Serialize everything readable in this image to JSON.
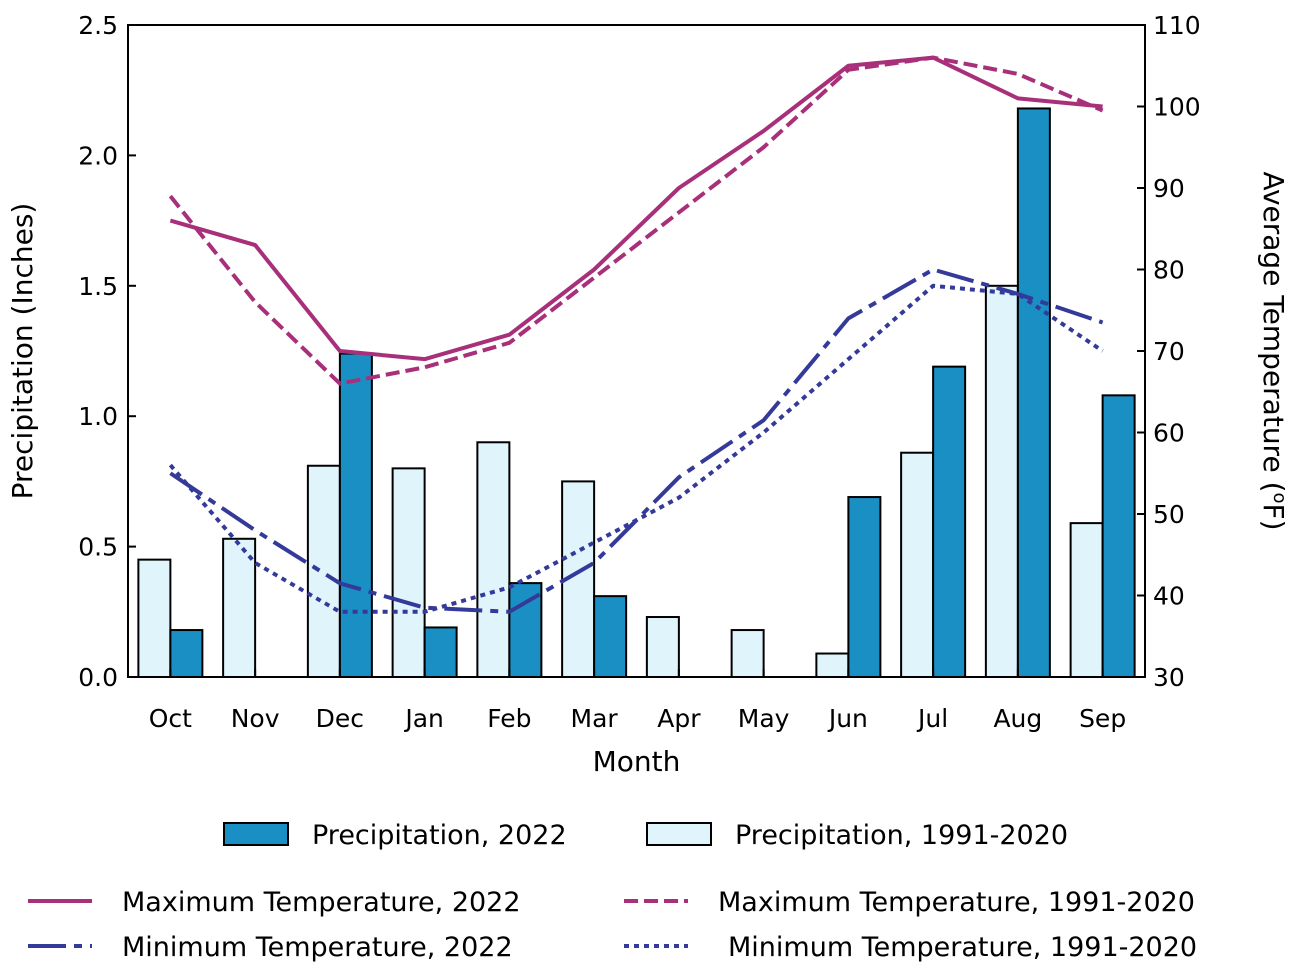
{
  "chart_data": {
    "type": "bar",
    "categories": [
      "Oct",
      "Nov",
      "Dec",
      "Jan",
      "Feb",
      "Mar",
      "Apr",
      "May",
      "Jun",
      "Jul",
      "Aug",
      "Sep"
    ],
    "xlabel": "Month",
    "ylabel_left": "Precipitation (Inches)",
    "ylabel_right_prefix": "Average Temperature (",
    "ylabel_right_sup": "o",
    "ylabel_right_suffix": "F)",
    "ylim_left": [
      0,
      2.5
    ],
    "yticks_left": [
      "0.0",
      "0.5",
      "1.0",
      "1.5",
      "2.0",
      "2.5"
    ],
    "ylim_right": [
      30,
      110
    ],
    "yticks_right": [
      "30",
      "40",
      "50",
      "60",
      "70",
      "80",
      "90",
      "100",
      "110"
    ],
    "grid": false,
    "bar_series": [
      {
        "name": "Precipitation, 1991-2020",
        "color": "#e0f4fb",
        "values": [
          0.45,
          0.53,
          0.81,
          0.8,
          0.9,
          0.75,
          0.23,
          0.18,
          0.09,
          0.86,
          1.5,
          0.59
        ]
      },
      {
        "name": "Precipitation, 2022",
        "color": "#1a8fc4",
        "values": [
          0.18,
          0.0,
          1.24,
          0.19,
          0.36,
          0.31,
          0.0,
          0.0,
          0.69,
          1.19,
          2.18,
          1.08
        ]
      }
    ],
    "line_series": [
      {
        "name": "Maximum Temperature, 2022",
        "color": "#a8307a",
        "style": "solid",
        "values": [
          86,
          83,
          70,
          69,
          72,
          80,
          90,
          97,
          105,
          106,
          101,
          100
        ]
      },
      {
        "name": "Maximum Temperature, 1991-2020",
        "color": "#a8307a",
        "style": "dashed",
        "values": [
          89,
          76,
          66,
          68,
          71,
          79,
          87,
          95,
          104.5,
          106,
          104,
          99.5
        ]
      },
      {
        "name": "Minimum Temperature, 2022",
        "color": "#343a9a",
        "style": "longdash",
        "values": [
          55,
          48,
          41.5,
          38.5,
          38,
          44,
          54.5,
          61.5,
          74,
          80,
          77,
          73.5
        ]
      },
      {
        "name": "Minimum Temperature, 1991-2020",
        "color": "#343a9a",
        "style": "dotted",
        "values": [
          56,
          44,
          38,
          38,
          41,
          46.5,
          52,
          60,
          69,
          78,
          77,
          70
        ]
      }
    ],
    "legend_position": "bottom"
  }
}
